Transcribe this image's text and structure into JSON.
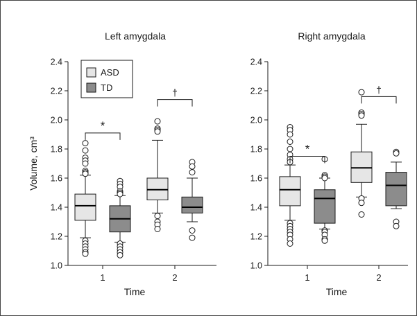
{
  "chart_data": [
    {
      "type": "box",
      "title": "Left amygdala",
      "xlabel": "Time",
      "ylabel": "Volume, cm³",
      "ylim": [
        1.0,
        2.4
      ],
      "yticks": [
        "1.0",
        "1.2",
        "1.4",
        "1.6",
        "1.8",
        "2.0",
        "2.2",
        "2.4"
      ],
      "categories": [
        "1",
        "2"
      ],
      "legend": {
        "placement": "top-left",
        "entries": [
          "ASD",
          "TD"
        ]
      },
      "series": [
        {
          "name": "ASD",
          "color": "#e6e6e6",
          "boxes": [
            {
              "whisker_low": 1.19,
              "q1": 1.31,
              "median": 1.41,
              "q3": 1.49,
              "whisker_high": 1.62,
              "outliers": [
                1.84,
                1.79,
                1.74,
                1.72,
                1.7,
                1.65,
                1.64,
                1.63,
                1.17,
                1.15,
                1.13,
                1.11,
                1.09,
                1.08
              ]
            },
            {
              "whisker_low": 1.36,
              "q1": 1.45,
              "median": 1.52,
              "q3": 1.6,
              "whisker_high": 1.86,
              "outliers": [
                1.99,
                1.94,
                1.93,
                1.92,
                1.34,
                1.3,
                1.28,
                1.25
              ]
            }
          ]
        },
        {
          "name": "TD",
          "color": "#8c8c8c",
          "boxes": [
            {
              "whisker_low": 1.16,
              "q1": 1.23,
              "median": 1.32,
              "q3": 1.41,
              "whisker_high": 1.48,
              "outliers": [
                1.58,
                1.56,
                1.54,
                1.51,
                1.5,
                1.49,
                1.15,
                1.13,
                1.11,
                1.09,
                1.07
              ]
            },
            {
              "whisker_low": 1.3,
              "q1": 1.36,
              "median": 1.4,
              "q3": 1.47,
              "whisker_high": 1.6,
              "outliers": [
                1.71,
                1.68,
                1.64,
                1.24,
                1.19
              ]
            }
          ]
        }
      ],
      "annotations": [
        {
          "category": "1",
          "symbol": "*",
          "y": 1.91
        },
        {
          "category": "2",
          "symbol": "†",
          "y": 2.14
        }
      ]
    },
    {
      "type": "box",
      "title": "Right amygdala",
      "xlabel": "Time",
      "ylabel": "",
      "ylim": [
        1.0,
        2.4
      ],
      "yticks": [
        "1.0",
        "1.2",
        "1.4",
        "1.6",
        "1.8",
        "2.0",
        "2.2",
        "2.4"
      ],
      "categories": [
        "1",
        "2"
      ],
      "series": [
        {
          "name": "ASD",
          "color": "#e6e6e6",
          "boxes": [
            {
              "whisker_low": 1.31,
              "q1": 1.41,
              "median": 1.52,
              "q3": 1.61,
              "whisker_high": 1.69,
              "outliers": [
                1.95,
                1.93,
                1.9,
                1.85,
                1.8,
                1.76,
                1.73,
                1.71,
                1.29,
                1.27,
                1.25,
                1.23,
                1.21,
                1.18,
                1.15
              ]
            },
            {
              "whisker_low": 1.47,
              "q1": 1.57,
              "median": 1.67,
              "q3": 1.78,
              "whisker_high": 1.97,
              "outliers": [
                2.19,
                2.05,
                2.04,
                2.03,
                1.46,
                1.43,
                1.35
              ]
            }
          ]
        },
        {
          "name": "TD",
          "color": "#8c8c8c",
          "boxes": [
            {
              "whisker_low": 1.25,
              "q1": 1.29,
              "median": 1.46,
              "q3": 1.52,
              "whisker_high": 1.6,
              "outliers": [
                1.73,
                1.62,
                1.61,
                1.6,
                1.24,
                1.23,
                1.21,
                1.18,
                1.17
              ]
            },
            {
              "whisker_low": 1.39,
              "q1": 1.41,
              "median": 1.55,
              "q3": 1.64,
              "whisker_high": 1.71,
              "outliers": [
                1.78,
                1.77,
                1.3,
                1.27
              ]
            }
          ]
        }
      ],
      "annotations": [
        {
          "category": "1",
          "symbol": "*",
          "y": 1.75
        },
        {
          "category": "2",
          "symbol": "†",
          "y": 2.16
        }
      ]
    }
  ]
}
